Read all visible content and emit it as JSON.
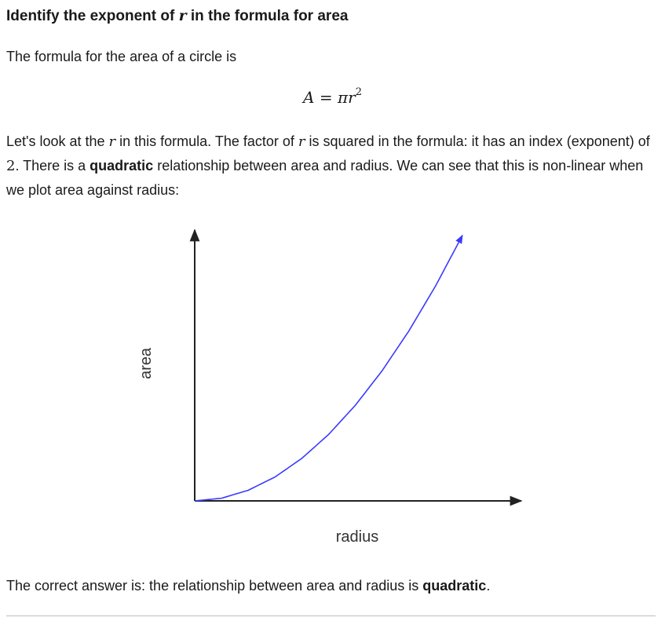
{
  "heading": {
    "prefix": "Identify the exponent of ",
    "var": "r",
    "suffix": " in the formula for area"
  },
  "intro": "The formula for the area of a circle is",
  "formula": {
    "lhs": "A",
    "eq": " = ",
    "pi": "π",
    "var": "r",
    "exponent": "2"
  },
  "explanation": {
    "part1": "Let's look at the ",
    "var1": "r",
    "part2": " in this formula. The factor of ",
    "var2": "r",
    "part3": " is squared in the formula: it has an index (exponent) of ",
    "exponent": "2",
    "part4": ". There is a ",
    "bold": "quadratic",
    "part5": " relationship between area and radius. We can see that this is non-linear when we plot area against radius:"
  },
  "chart_data": {
    "type": "line",
    "xlabel": "radius",
    "ylabel": "area",
    "series": [
      {
        "color": "#3a3aff",
        "x": [
          0,
          0.1,
          0.2,
          0.3,
          0.4,
          0.5,
          0.6,
          0.7,
          0.8,
          0.9,
          1.0
        ],
        "values": [
          0,
          0.01,
          0.04,
          0.09,
          0.16,
          0.25,
          0.36,
          0.49,
          0.64,
          0.81,
          1.0
        ]
      }
    ],
    "xlim": [
      0,
      1.22
    ],
    "ylim": [
      0,
      1.02
    ],
    "grid": false,
    "arrowheads": true
  },
  "conclusion": {
    "text": "The correct answer is: the relationship between area and radius is ",
    "bold": "quadratic",
    "end": "."
  }
}
